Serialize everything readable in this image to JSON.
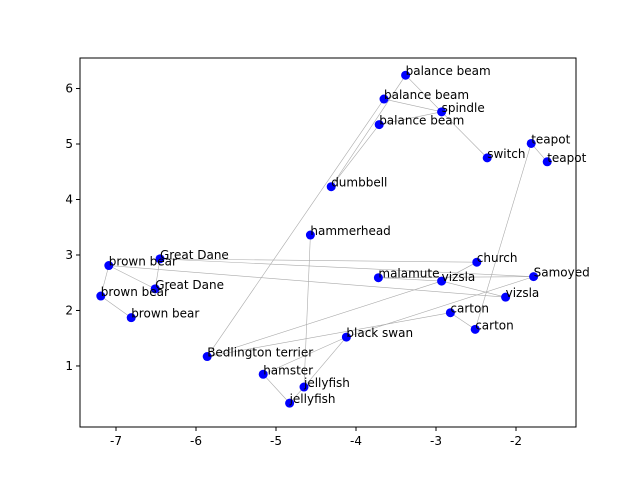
{
  "chart_data": {
    "type": "scatter",
    "title": "",
    "xlabel": "",
    "ylabel": "",
    "xlim": [
      -7.45,
      -1.25
    ],
    "ylim": [
      -0.1,
      6.55
    ],
    "xticks": [
      -7,
      -6,
      -5,
      -4,
      -3,
      -2
    ],
    "yticks": [
      1,
      2,
      3,
      4,
      5,
      6
    ],
    "grid": false,
    "marker_color": "#0000ff",
    "edge_color": "#aaaaaa",
    "points": [
      {
        "label": "balance beam",
        "x": -3.38,
        "y": 6.24
      },
      {
        "label": "balance beam",
        "x": -3.65,
        "y": 5.81
      },
      {
        "label": "balance beam",
        "x": -3.71,
        "y": 5.35
      },
      {
        "label": "spindle",
        "x": -2.93,
        "y": 5.58
      },
      {
        "label": "teapot",
        "x": -1.81,
        "y": 5.01
      },
      {
        "label": "teapot",
        "x": -1.61,
        "y": 4.68
      },
      {
        "label": "switch",
        "x": -2.36,
        "y": 4.75
      },
      {
        "label": "dumbbell",
        "x": -4.31,
        "y": 4.23
      },
      {
        "label": "hammerhead",
        "x": -4.57,
        "y": 3.36
      },
      {
        "label": "brown bear",
        "x": -7.09,
        "y": 2.81
      },
      {
        "label": "Great Dane",
        "x": -6.45,
        "y": 2.93
      },
      {
        "label": "brown bear",
        "x": -7.19,
        "y": 2.26
      },
      {
        "label": "Great Dane",
        "x": -6.51,
        "y": 2.39
      },
      {
        "label": "brown bear",
        "x": -6.81,
        "y": 1.87
      },
      {
        "label": "church",
        "x": -2.49,
        "y": 2.87
      },
      {
        "label": "Samoyed",
        "x": -1.78,
        "y": 2.61
      },
      {
        "label": "malamute",
        "x": -3.72,
        "y": 2.59
      },
      {
        "label": "vizsla",
        "x": -2.93,
        "y": 2.53
      },
      {
        "label": "vizsla",
        "x": -2.13,
        "y": 2.24
      },
      {
        "label": "carton",
        "x": -2.82,
        "y": 1.96
      },
      {
        "label": "carton",
        "x": -2.51,
        "y": 1.66
      },
      {
        "label": "black swan",
        "x": -4.12,
        "y": 1.52
      },
      {
        "label": "Bedlington terrier",
        "x": -5.86,
        "y": 1.17
      },
      {
        "label": "hamster",
        "x": -5.16,
        "y": 0.85
      },
      {
        "label": "jellyfish",
        "x": -4.65,
        "y": 0.62
      },
      {
        "label": "jellyfish",
        "x": -4.83,
        "y": 0.33
      }
    ],
    "edges": [
      [
        0,
        3
      ],
      [
        1,
        3
      ],
      [
        2,
        3
      ],
      [
        3,
        6
      ],
      [
        4,
        5
      ],
      [
        1,
        22
      ],
      [
        2,
        7
      ],
      [
        7,
        0
      ],
      [
        8,
        24
      ],
      [
        9,
        11
      ],
      [
        9,
        12
      ],
      [
        11,
        13
      ],
      [
        10,
        12
      ],
      [
        10,
        14
      ],
      [
        9,
        18
      ],
      [
        10,
        15
      ],
      [
        16,
        15
      ],
      [
        16,
        17
      ],
      [
        17,
        14
      ],
      [
        17,
        18
      ],
      [
        17,
        22
      ],
      [
        19,
        20
      ],
      [
        19,
        22
      ],
      [
        20,
        4
      ],
      [
        21,
        15
      ],
      [
        21,
        23
      ],
      [
        23,
        25
      ],
      [
        24,
        25
      ],
      [
        24,
        21
      ]
    ]
  }
}
